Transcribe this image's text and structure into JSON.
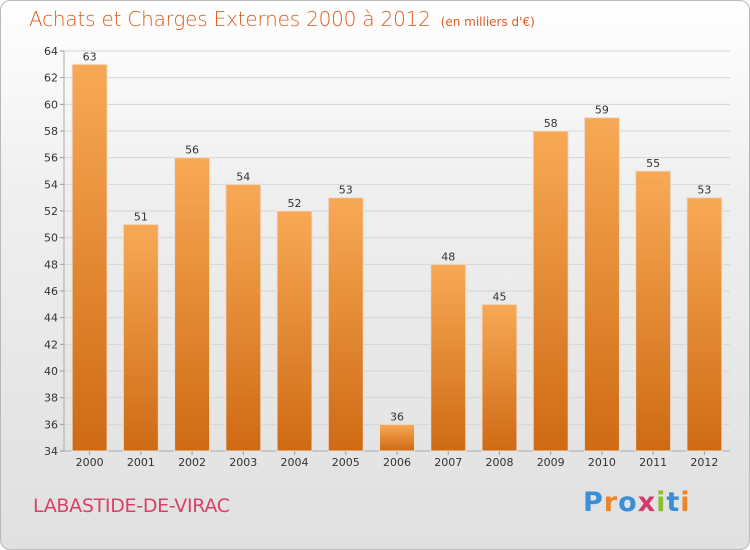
{
  "title": "Achats et Charges Externes 2000 à 2012",
  "unit_note": "(en milliers d'€)",
  "location": "LABASTIDE-DE-VIRAC",
  "brand": {
    "text": "Proxiti",
    "letter_colors": [
      "#3a8fd6",
      "#e8862a",
      "#3a8fd6",
      "#d33a6b",
      "#8cbf2d",
      "#3a8fd6",
      "#e8862a"
    ]
  },
  "colors": {
    "title": "#e05a1f",
    "location": "#d9406a",
    "bar_top": "#f8a955",
    "bar_bottom": "#cf6a14",
    "grid": "#d6d6d6",
    "axis_text": "#333333"
  },
  "chart_data": {
    "type": "bar",
    "title": "Achats et Charges Externes 2000 à 2012",
    "subtitle": "(en milliers d'€)",
    "categories": [
      "2000",
      "2001",
      "2002",
      "2003",
      "2004",
      "2005",
      "2006",
      "2007",
      "2008",
      "2009",
      "2010",
      "2011",
      "2012"
    ],
    "values": [
      63,
      51,
      56,
      54,
      52,
      53,
      36,
      48,
      45,
      58,
      59,
      55,
      53
    ],
    "ylim": [
      34,
      64
    ],
    "yticks": [
      34,
      36,
      38,
      40,
      42,
      44,
      46,
      48,
      50,
      52,
      54,
      56,
      58,
      60,
      62,
      64
    ],
    "xlabel": "",
    "ylabel": "",
    "grid": true,
    "data_labels": true
  }
}
